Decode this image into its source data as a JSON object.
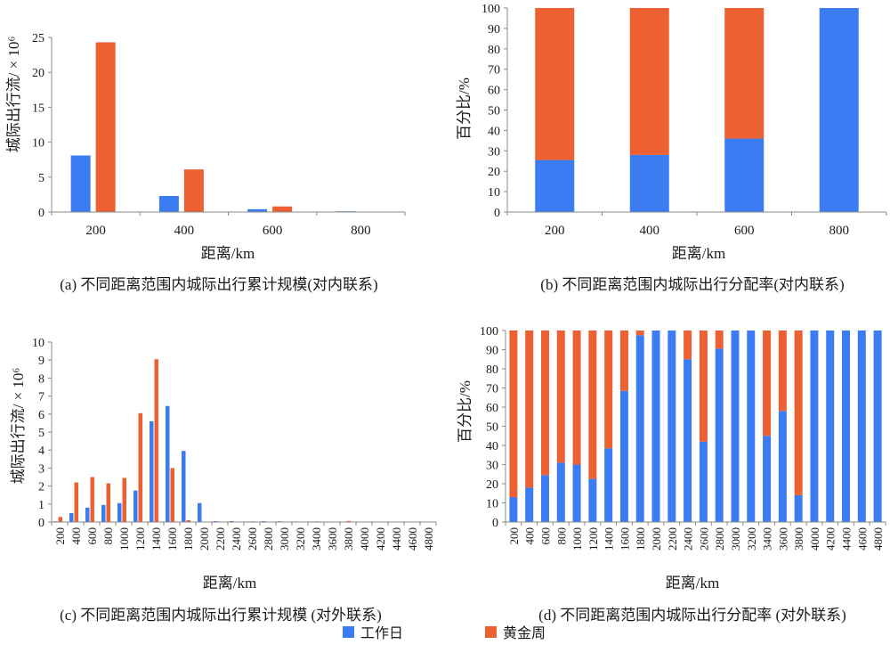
{
  "legend_placement": "bottom-center",
  "chart_data": [
    {
      "type": "bar",
      "stacked": false,
      "grid": false,
      "caption": "(a) 不同距离范围内城际出行累计规模(对内联系)",
      "xlabel": "距离/km",
      "ylabel": "城际出行流/ × 10⁶",
      "ylim": [
        0,
        25
      ],
      "yticks": [
        0,
        5,
        10,
        15,
        20,
        25
      ],
      "categories": [
        "200",
        "400",
        "600",
        "800"
      ],
      "series": [
        {
          "name": "工作日",
          "color": "#3b7cf3",
          "values": [
            8.1,
            2.3,
            0.4,
            0.1
          ]
        },
        {
          "name": "黄金周",
          "color": "#ec6031",
          "values": [
            24.3,
            6.1,
            0.8,
            0
          ]
        }
      ]
    },
    {
      "type": "bar",
      "stacked": true,
      "grid": false,
      "caption": "(b) 不同距离范围内城际出行分配率(对内联系)",
      "xlabel": "距离/km",
      "ylabel": "百分比/%",
      "ylim": [
        0,
        100
      ],
      "yticks": [
        0,
        10,
        20,
        30,
        40,
        50,
        60,
        70,
        80,
        90,
        100
      ],
      "categories": [
        "200",
        "400",
        "600",
        "800"
      ],
      "series": [
        {
          "name": "工作日",
          "color": "#3b7cf3",
          "values": [
            25.5,
            28,
            36,
            100
          ]
        },
        {
          "name": "黄金周",
          "color": "#ec6031",
          "values": [
            74.5,
            72,
            64,
            0
          ]
        }
      ]
    },
    {
      "type": "bar",
      "stacked": false,
      "grid": false,
      "caption": "(c) 不同距离范围内城际出行累计规模 (对外联系)",
      "xlabel": "距离/km",
      "ylabel": "城际出行流/ × 10⁶",
      "ylim": [
        0,
        10
      ],
      "yticks": [
        0,
        1,
        2,
        3,
        4,
        5,
        6,
        7,
        8,
        9,
        10
      ],
      "categories": [
        "200",
        "400",
        "600",
        "800",
        "1000",
        "1200",
        "1400",
        "1600",
        "1800",
        "2000",
        "2200",
        "2400",
        "2600",
        "2800",
        "3000",
        "3200",
        "3400",
        "3600",
        "3800",
        "4000",
        "4200",
        "4400",
        "4600",
        "4800"
      ],
      "series": [
        {
          "name": "工作日",
          "color": "#3b7cf3",
          "values": [
            0.04,
            0.5,
            0.8,
            0.95,
            1.05,
            1.75,
            5.6,
            6.45,
            3.95,
            1.05,
            0.05,
            0.05,
            0.03,
            0.05,
            0.04,
            0.03,
            0.03,
            0.03,
            0.01,
            0.02,
            0.02,
            0.02,
            0.02,
            0.02
          ]
        },
        {
          "name": "黄金周",
          "color": "#ec6031",
          "values": [
            0.28,
            2.2,
            2.5,
            2.15,
            2.45,
            6.05,
            9.05,
            3.0,
            0.1,
            0,
            0,
            0.01,
            0.04,
            0.01,
            0,
            0,
            0.04,
            0.02,
            0.06,
            0,
            0,
            0,
            0,
            0
          ]
        }
      ]
    },
    {
      "type": "bar",
      "stacked": true,
      "grid": false,
      "caption": "(d) 不同距离范围内城际出行分配率 (对外联系)",
      "xlabel": "距离/km",
      "ylabel": "百分比/%",
      "ylim": [
        0,
        100
      ],
      "yticks": [
        0,
        10,
        20,
        30,
        40,
        50,
        60,
        70,
        80,
        90,
        100
      ],
      "categories": [
        "200",
        "400",
        "600",
        "800",
        "1000",
        "1200",
        "1400",
        "1600",
        "1800",
        "2000",
        "2200",
        "2400",
        "2600",
        "2800",
        "3000",
        "3200",
        "3400",
        "3600",
        "3800",
        "4000",
        "4200",
        "4400",
        "4600",
        "4800"
      ],
      "series": [
        {
          "name": "工作日",
          "color": "#3b7cf3",
          "values": [
            13,
            18,
            24.5,
            31,
            30,
            22.5,
            38.5,
            68.5,
            97.5,
            100,
            100,
            85,
            42,
            90.5,
            100,
            100,
            45,
            58,
            14,
            100,
            100,
            100,
            100,
            100
          ]
        },
        {
          "name": "黄金周",
          "color": "#ec6031",
          "values": [
            87,
            82,
            75.5,
            69,
            70,
            77.5,
            61.5,
            31.5,
            2.5,
            0,
            0,
            15,
            58,
            9.5,
            0,
            0,
            55,
            42,
            86,
            0,
            0,
            0,
            0,
            0
          ]
        }
      ]
    }
  ]
}
